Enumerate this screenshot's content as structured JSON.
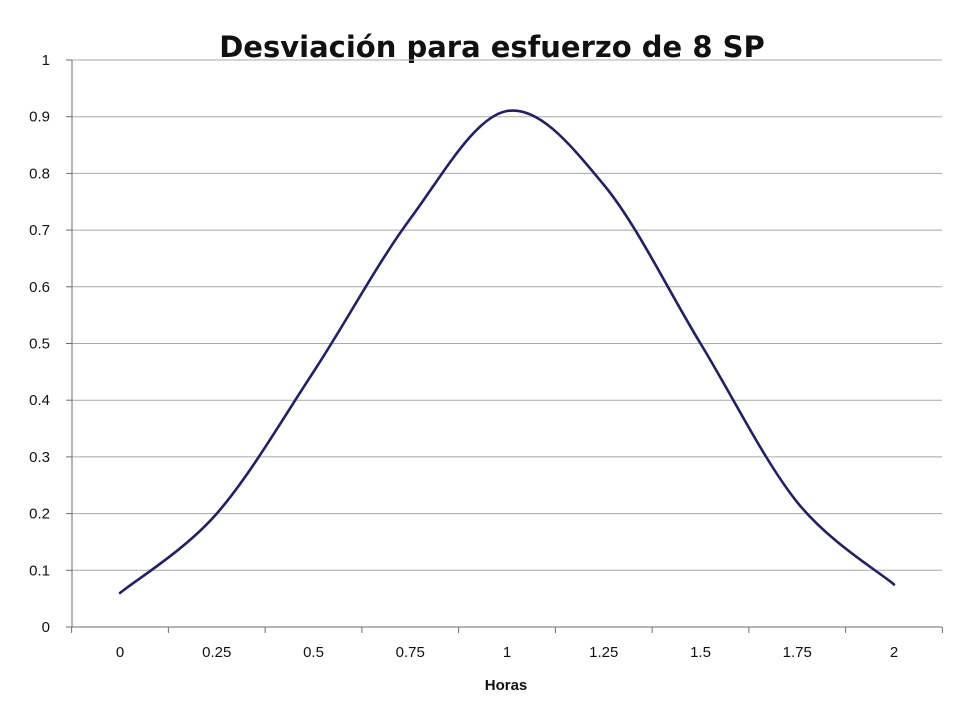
{
  "chart_data": {
    "type": "line",
    "title": "Desviación para esfuerzo de 8 SP",
    "xlabel": "Horas",
    "ylabel": "",
    "x_ticks": [
      "0",
      "0.25",
      "0.5",
      "0.75",
      "1",
      "1.25",
      "1.5",
      "1.75",
      "2"
    ],
    "y_ticks": [
      "0",
      "0.1",
      "0.2",
      "0.3",
      "0.4",
      "0.5",
      "0.6",
      "0.7",
      "0.8",
      "0.9",
      "1"
    ],
    "xlim": [
      0,
      2
    ],
    "ylim": [
      0,
      1
    ],
    "grid": true,
    "legend": "none",
    "series": [
      {
        "color": "#1f1f6e",
        "x": [
          0,
          0.25,
          0.5,
          0.75,
          1,
          1.25,
          1.5,
          1.75,
          2
        ],
        "y": [
          0.06,
          0.2,
          0.45,
          0.72,
          0.91,
          0.78,
          0.5,
          0.22,
          0.075
        ]
      }
    ]
  }
}
